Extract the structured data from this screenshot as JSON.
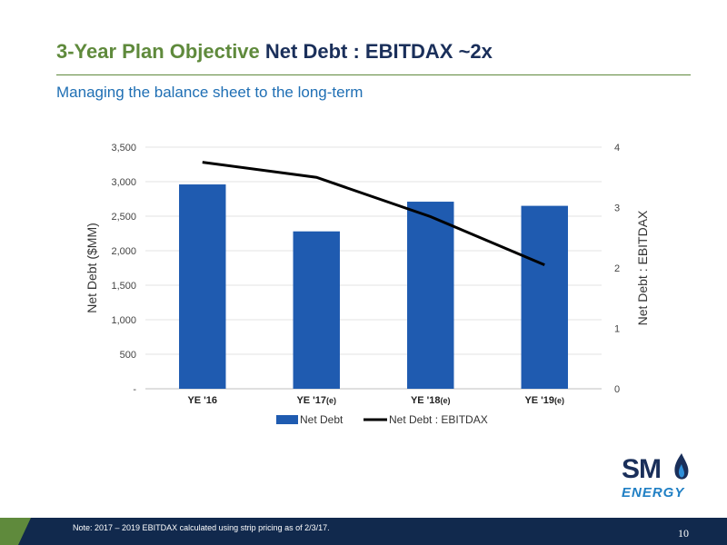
{
  "header": {
    "title_part1": "3-Year Plan Objective",
    "title_part2": "Net Debt : EBITDAX ~2x",
    "subtitle": "Managing the balance sheet to the long-term"
  },
  "chart_data": {
    "type": "bar",
    "categories": [
      "YE '16",
      "YE '17",
      "YE '18",
      "YE '19"
    ],
    "category_suffixes": [
      "",
      "(e)",
      "(e)",
      "(e)"
    ],
    "series": [
      {
        "name": "Net Debt",
        "type": "bar",
        "axis": "left",
        "color": "#1f5bb0",
        "values": [
          2960,
          2280,
          2710,
          2650
        ]
      },
      {
        "name": "Net Debt : EBITDAX",
        "type": "line",
        "axis": "right",
        "color": "#000000",
        "values": [
          3.75,
          3.5,
          2.85,
          2.05
        ]
      }
    ],
    "ylabel": "Net Debt ($MM)",
    "ylabel_right": "Net Debt : EBITDAX",
    "ylim": [
      0,
      3500
    ],
    "ylim_right": [
      0,
      4
    ],
    "yticks": [
      0,
      500,
      1000,
      1500,
      2000,
      2500,
      3000,
      3500
    ],
    "ytick_labels": [
      "-",
      "500",
      "1,000",
      "1,500",
      "2,000",
      "2,500",
      "3,000",
      "3,500"
    ],
    "yticks_right": [
      0,
      1,
      2,
      3,
      4
    ],
    "grid": true,
    "legend_position": "bottom"
  },
  "logo": {
    "line1": "SM",
    "line2": "ENERGY"
  },
  "footer": {
    "note": "Note: 2017 – 2019 EBITDAX calculated using strip pricing as of 2/3/17.",
    "page_number": "10"
  }
}
